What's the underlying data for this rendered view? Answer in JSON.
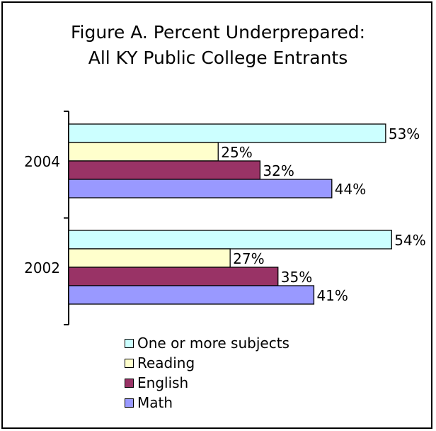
{
  "chart_data": {
    "type": "bar",
    "orientation": "horizontal",
    "title": "Figure A. Percent Underprepared:",
    "subtitle": "All KY Public College Entrants",
    "categories": [
      "2004",
      "2002"
    ],
    "series": [
      {
        "name": "One or more subjects",
        "color": "#ccffff",
        "values": [
          53,
          54
        ],
        "labels": [
          "53%",
          "54%"
        ]
      },
      {
        "name": "Reading",
        "color": "#ffffcc",
        "values": [
          25,
          27
        ],
        "labels": [
          "25%",
          "27%"
        ]
      },
      {
        "name": "English",
        "color": "#993366",
        "values": [
          32,
          35
        ],
        "labels": [
          "32%",
          "35%"
        ]
      },
      {
        "name": "Math",
        "color": "#9999ff",
        "values": [
          44,
          41
        ],
        "labels": [
          "44%",
          "41%"
        ]
      }
    ],
    "xlim": [
      0,
      60
    ],
    "grid": false,
    "legend_placement": "bottom"
  }
}
